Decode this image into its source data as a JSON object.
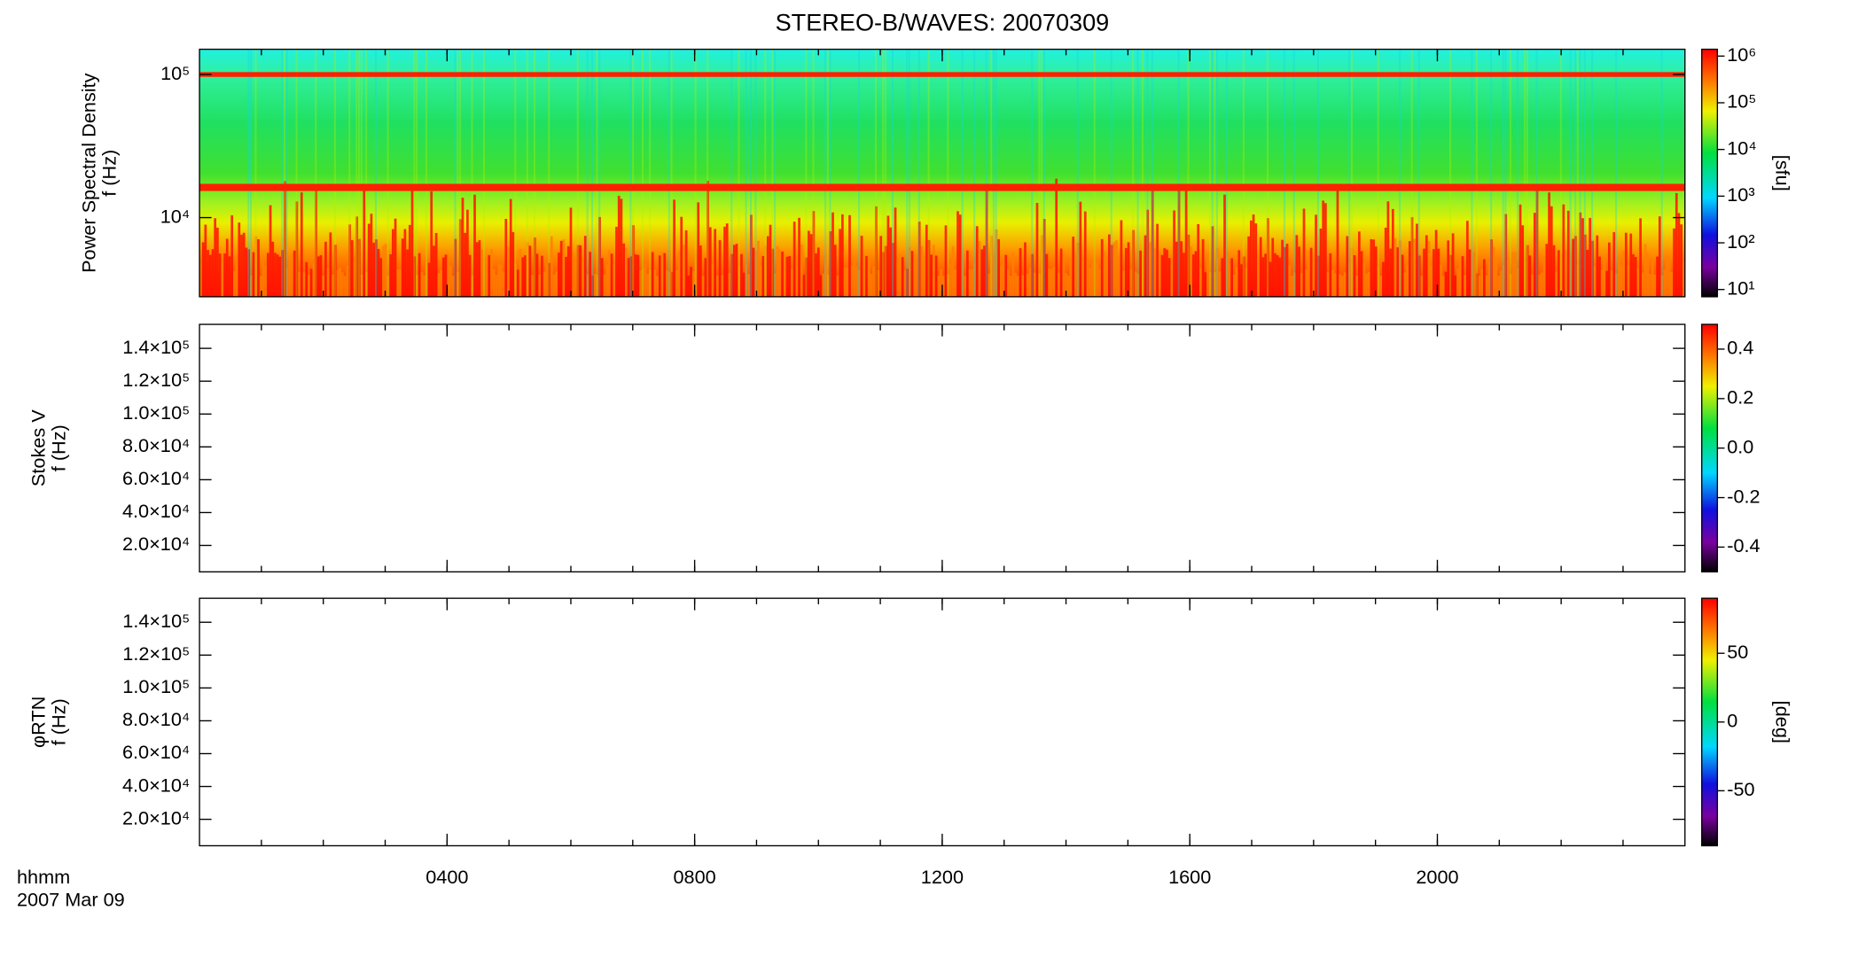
{
  "chart_data": [
    {
      "type": "heatmap",
      "title": "STEREO-B/WAVES: 20070309",
      "ylabel": [
        "Power Spectral Density",
        "f (Hz)"
      ],
      "ylog": true,
      "ylim": [
        2800,
        150000
      ],
      "yticks": [
        {
          "value": 10000,
          "label": "10⁴"
        },
        {
          "value": 100000,
          "label": "10⁵"
        }
      ],
      "colormap": "rainbow",
      "colorbar": {
        "label": "[sfu]",
        "log": true,
        "lim": [
          7,
          1400000
        ],
        "ticks": [
          {
            "value": 10,
            "label": "10¹"
          },
          {
            "value": 100,
            "label": "10²"
          },
          {
            "value": 1000,
            "label": "10³"
          },
          {
            "value": 10000,
            "label": "10⁴"
          },
          {
            "value": 100000,
            "label": "10⁵"
          },
          {
            "value": 1000000,
            "label": "10⁶"
          }
        ]
      }
    },
    {
      "type": "heatmap",
      "ylabel": [
        "Stokes V",
        "f (Hz)"
      ],
      "ylog": false,
      "ylim": [
        3900,
        154600
      ],
      "yticks": [
        {
          "value": 20000,
          "label": "2.0×10⁴"
        },
        {
          "value": 40000,
          "label": "4.0×10⁴"
        },
        {
          "value": 60000,
          "label": "6.0×10⁴"
        },
        {
          "value": 80000,
          "label": "8.0×10⁴"
        },
        {
          "value": 100000,
          "label": "1.0×10⁵"
        },
        {
          "value": 120000,
          "label": "1.2×10⁵"
        },
        {
          "value": 140000,
          "label": "1.4×10⁵"
        }
      ],
      "colormap": "rainbow",
      "colorbar": {
        "log": false,
        "lim": [
          -0.5,
          0.5
        ],
        "ticks": [
          -0.4,
          -0.2,
          {
            "value": 0,
            "label": "0.0"
          },
          0.2,
          0.4
        ]
      }
    },
    {
      "type": "heatmap",
      "ylabel": [
        "φRTN",
        "f (Hz)"
      ],
      "ylog": false,
      "ylim": [
        3900,
        154600
      ],
      "yticks": [
        {
          "value": 20000,
          "label": "2.0×10⁴"
        },
        {
          "value": 40000,
          "label": "4.0×10⁴"
        },
        {
          "value": 60000,
          "label": "6.0×10⁴"
        },
        {
          "value": 80000,
          "label": "8.0×10⁴"
        },
        {
          "value": 100000,
          "label": "1.0×10⁵"
        },
        {
          "value": 120000,
          "label": "1.2×10⁵"
        },
        {
          "value": 140000,
          "label": "1.4×10⁵"
        }
      ],
      "colormap": "rainbow",
      "colorbar": {
        "label": "[deg]",
        "log": false,
        "lim": [
          -90,
          90
        ],
        "ticks": [
          -50,
          0,
          50
        ]
      },
      "xlabel": "hhmm",
      "date_label": "2007 Mar 09",
      "xlim": [
        0,
        1440
      ],
      "xticks": [
        {
          "value": 240,
          "label": "0400"
        },
        {
          "value": 480,
          "label": "0800"
        },
        {
          "value": 720,
          "label": "1200"
        },
        {
          "value": 960,
          "label": "1600"
        },
        {
          "value": 1200,
          "label": "2000"
        }
      ]
    }
  ]
}
